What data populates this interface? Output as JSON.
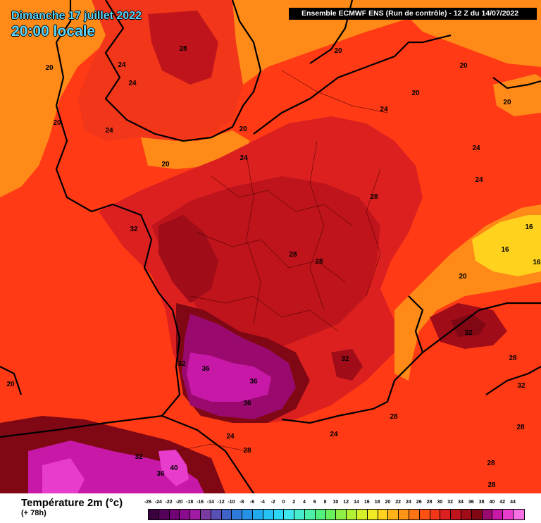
{
  "header": {
    "date": "Dimanche 17 juillet 2022",
    "time": "20:00 locale",
    "run_info": "Ensemble ECMWF ENS  (Run de contrôle)  -  12 Z du 14/07/2022",
    "title_color": "#5ad7ff"
  },
  "legend": {
    "title": "Température 2m (°c)",
    "subtitle": "(+ 78h)",
    "ticks": [
      "-26",
      "-24",
      "-22",
      "-20",
      "-18",
      "-16",
      "-14",
      "-12",
      "-10",
      "-8",
      "-6",
      "-4",
      "-2",
      "0",
      "2",
      "4",
      "6",
      "8",
      "10",
      "12",
      "14",
      "16",
      "18",
      "20",
      "22",
      "24",
      "26",
      "28",
      "30",
      "32",
      "34",
      "36",
      "38",
      "40",
      "42",
      "44"
    ],
    "colors": [
      "#3b0040",
      "#55005a",
      "#700073",
      "#8a0a8c",
      "#a01aa3",
      "#7a3aa0",
      "#5a4fb4",
      "#3f62c6",
      "#2f7ad8",
      "#2592e6",
      "#22aaf0",
      "#26c2f6",
      "#2ed6f8",
      "#3fe6ee",
      "#46eccc",
      "#4cf0a6",
      "#52f07c",
      "#6af05a",
      "#8ef046",
      "#b2f034",
      "#d4f02a",
      "#f0ea24",
      "#ffd21e",
      "#ffb21a",
      "#ff9416",
      "#ff7414",
      "#ff5212",
      "#f2361a",
      "#dc2020",
      "#c0141c",
      "#a00c18",
      "#800814",
      "#9a0a6e",
      "#c818a8",
      "#e83ccc",
      "#f870e6"
    ]
  },
  "map": {
    "contour_labels": [
      "20",
      "28",
      "24",
      "24",
      "20",
      "24",
      "20",
      "24",
      "20",
      "20",
      "24",
      "20",
      "20",
      "24",
      "24",
      "28",
      "32",
      "16",
      "16",
      "16",
      "28",
      "28",
      "20",
      "32",
      "32",
      "36",
      "36",
      "36",
      "28",
      "20",
      "32",
      "28",
      "32",
      "28",
      "24",
      "28",
      "24",
      "32",
      "40",
      "36",
      "28",
      "28"
    ]
  }
}
